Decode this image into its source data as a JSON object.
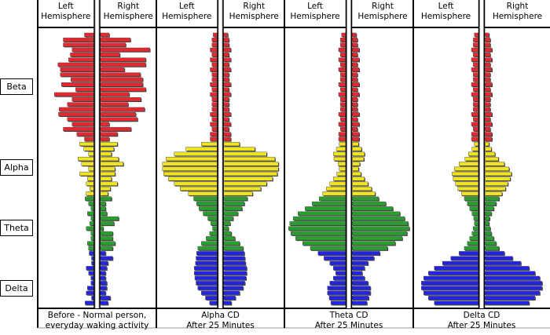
{
  "chart_data": {
    "type": "bar",
    "orientation": "horizontal-mirrored",
    "hemisphere_labels": {
      "left": "Left Hemisphere",
      "right": "Right Hemisphere"
    },
    "bands": [
      {
        "name": "Beta",
        "color": "#e8262e",
        "bars": 22
      },
      {
        "name": "Alpha",
        "color": "#f2e41c",
        "bars": 11
      },
      {
        "name": "Theta",
        "color": "#25a02a",
        "bars": 11
      },
      {
        "name": "Delta",
        "color": "#2323e6",
        "bars": 11
      }
    ],
    "value_range": [
      0,
      100
    ],
    "panels": [
      {
        "caption_line1": "Before - Normal person,",
        "caption_line2": "everyday waking activity",
        "left": [
          16,
          52,
          52,
          37,
          40,
          43,
          61,
          57,
          57,
          39,
          55,
          31,
          67,
          37,
          45,
          59,
          60,
          45,
          37,
          52,
          29,
          16,
          24,
          17,
          9,
          27,
          21,
          9,
          24,
          11,
          13,
          7,
          13,
          15,
          9,
          5,
          11,
          5,
          7,
          13,
          5,
          5,
          11,
          9,
          8,
          4,
          4,
          13,
          9,
          5,
          5,
          11,
          13,
          4,
          15
        ],
        "right": [
          15,
          51,
          43,
          84,
          33,
          77,
          77,
          41,
          68,
          72,
          72,
          77,
          49,
          69,
          47,
          75,
          60,
          63,
          15,
          52,
          29,
          15,
          29,
          23,
          19,
          31,
          39,
          25,
          25,
          19,
          29,
          17,
          13,
          19,
          9,
          9,
          11,
          31,
          23,
          5,
          21,
          21,
          25,
          21,
          9,
          21,
          13,
          11,
          9,
          9,
          11,
          11,
          9,
          17,
          13
        ]
      },
      {
        "caption_line1": "Alpha CD",
        "caption_line2": "After 25 Minutes",
        "half": [
          7,
          9,
          9,
          12,
          9,
          12,
          9,
          12,
          9,
          9,
          12,
          9,
          12,
          9,
          9,
          9,
          12,
          9,
          12,
          9,
          12,
          12,
          27,
          53,
          73,
          87,
          93,
          93,
          91,
          83,
          73,
          63,
          49,
          40,
          35,
          31,
          24,
          16,
          11,
          8,
          13,
          19,
          27,
          33,
          35,
          36,
          37,
          39,
          39,
          38,
          36,
          33,
          27,
          20,
          13
        ]
      },
      {
        "caption_line1": "Theta CD",
        "caption_line2": "After 25 Minutes",
        "half": [
          7,
          9,
          9,
          12,
          9,
          12,
          9,
          12,
          9,
          9,
          12,
          9,
          12,
          9,
          9,
          9,
          12,
          9,
          12,
          9,
          12,
          12,
          11,
          16,
          21,
          20,
          13,
          11,
          15,
          21,
          27,
          33,
          39,
          45,
          57,
          69,
          81,
          89,
          95,
          97,
          93,
          85,
          73,
          60,
          47,
          37,
          27,
          21,
          17,
          21,
          27,
          31,
          31,
          28,
          25
        ]
      },
      {
        "caption_line1": "Delta CD",
        "caption_line2": "After 25 Minutes",
        "half": [
          7,
          9,
          9,
          12,
          9,
          12,
          9,
          12,
          9,
          9,
          12,
          9,
          12,
          9,
          9,
          9,
          12,
          9,
          12,
          9,
          12,
          12,
          7,
          11,
          17,
          23,
          33,
          41,
          45,
          43,
          39,
          35,
          29,
          24,
          19,
          15,
          11,
          8,
          7,
          9,
          11,
          15,
          19,
          24,
          33,
          47,
          61,
          75,
          85,
          93,
          97,
          97,
          93,
          85,
          75
        ]
      }
    ]
  }
}
